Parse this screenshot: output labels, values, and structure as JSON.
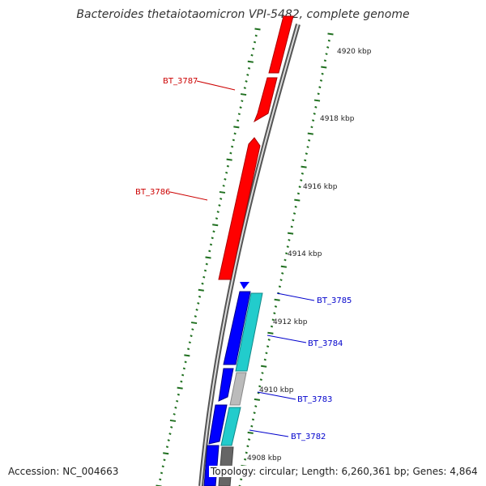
{
  "title": "Bacteroides thetaiotaomicron VPI-5482, complete genome",
  "accession": "Accession: NC_004663",
  "summary": "Topology: circular; Length: 6,260,361 bp; Genes: 4,864",
  "colors": {
    "forward_gene": "#ff0000",
    "reverse_gene": "#0000ff",
    "cyan_gene": "#22cccc",
    "grey_gene": "#bbbbbb",
    "dark_grey_gene": "#666666",
    "backbone": "#777777",
    "tick": "#207020"
  },
  "ticks": [
    {
      "label": "4920 kbp"
    },
    {
      "label": "4918 kbp"
    },
    {
      "label": "4916 kbp"
    },
    {
      "label": "4914 kbp"
    },
    {
      "label": "4912 kbp"
    },
    {
      "label": "4910 kbp"
    },
    {
      "label": "4908 kbp"
    }
  ],
  "gene_labels": [
    {
      "name": "BT_3787",
      "color": "#cc0000"
    },
    {
      "name": "BT_3786",
      "color": "#cc0000"
    },
    {
      "name": "BT_3785",
      "color": "#0000cc"
    },
    {
      "name": "BT_3784",
      "color": "#0000cc"
    },
    {
      "name": "BT_3783",
      "color": "#0000cc"
    },
    {
      "name": "BT_3782",
      "color": "#0000cc"
    }
  ]
}
